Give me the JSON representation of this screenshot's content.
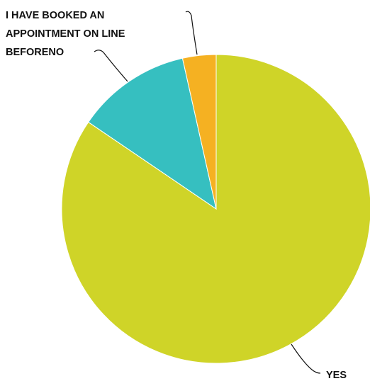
{
  "chart_data": {
    "type": "pie",
    "title": "",
    "categories": [
      "YES",
      "NO",
      "I HAVE BOOKED AN APPOINTMENT ON LINE BEFORE"
    ],
    "values": [
      84.5,
      12,
      3.5
    ],
    "colors": [
      "#cfd428",
      "#36bfc0",
      "#f5b122"
    ],
    "start": "12 o'clock, clockwise",
    "legend": "none",
    "labels": {
      "slice_yes": "YES",
      "slice_no": "NO",
      "question_line1": "I HAVE BOOKED AN",
      "question_line2": "APPOINTMENT ON LINE",
      "question_line3": "BEFORE"
    }
  }
}
